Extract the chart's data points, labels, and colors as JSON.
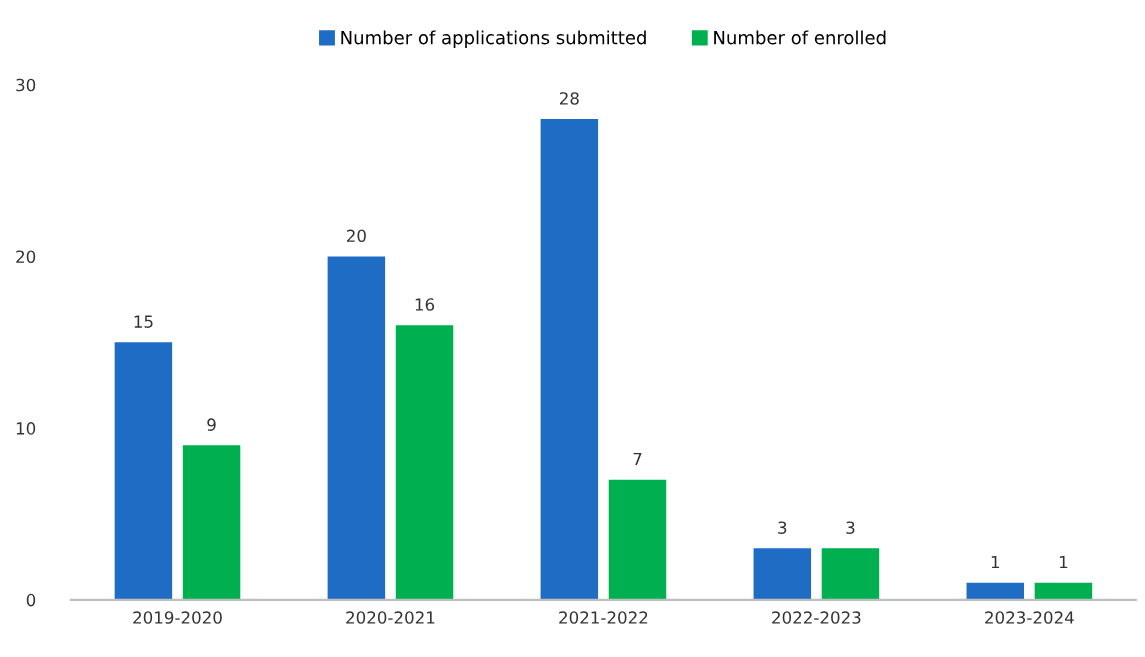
{
  "chart_data": {
    "type": "bar",
    "categories": [
      "2019-2020",
      "2020-2021",
      "2021-2022",
      "2022-2023",
      "2023-2024"
    ],
    "series": [
      {
        "name": "Number of applications submitted",
        "color": "#1f6cc4",
        "values": [
          15,
          20,
          28,
          3,
          1
        ]
      },
      {
        "name": "Number of enrolled",
        "color": "#00b050",
        "values": [
          9,
          16,
          7,
          3,
          1
        ]
      }
    ],
    "ylim": [
      0,
      30
    ],
    "yticks": [
      0,
      10,
      20,
      30
    ],
    "data_labels": true,
    "legend": "top",
    "grid": false
  }
}
